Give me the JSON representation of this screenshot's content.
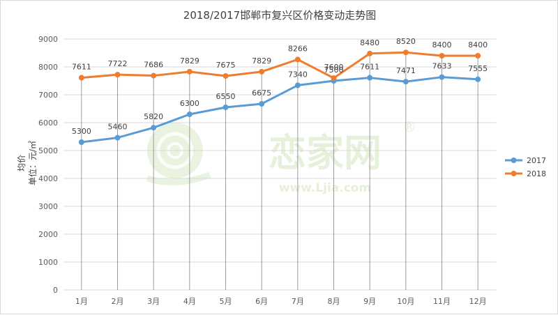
{
  "chart_data": {
    "type": "line",
    "title": "2018/2017邯郸市复兴区价格变动走势图",
    "ylabel": "均价",
    "ylabel_unit": "单位：元/㎡",
    "xlabel": "",
    "categories": [
      "1月",
      "2月",
      "3月",
      "4月",
      "5月",
      "6月",
      "7月",
      "8月",
      "9月",
      "10月",
      "11月",
      "12月"
    ],
    "ylim": [
      0,
      9000
    ],
    "yticks": [
      0,
      1000,
      2000,
      3000,
      4000,
      5000,
      6000,
      7000,
      8000,
      9000
    ],
    "grid": "horizontal",
    "legend_position": "right",
    "series": [
      {
        "name": "2017",
        "color": "#5b9bd5",
        "values": [
          5300,
          5460,
          5820,
          6300,
          6550,
          6675,
          7340,
          7500,
          7611,
          7471,
          7633,
          7555
        ]
      },
      {
        "name": "2018",
        "color": "#ed7d31",
        "values": [
          7611,
          7722,
          7686,
          7829,
          7675,
          7829,
          8266,
          7600,
          8480,
          8520,
          8400,
          8400
        ]
      }
    ]
  },
  "watermark": {
    "brand": "恋家网",
    "url": "www.Ljia.com",
    "mark": "®"
  }
}
